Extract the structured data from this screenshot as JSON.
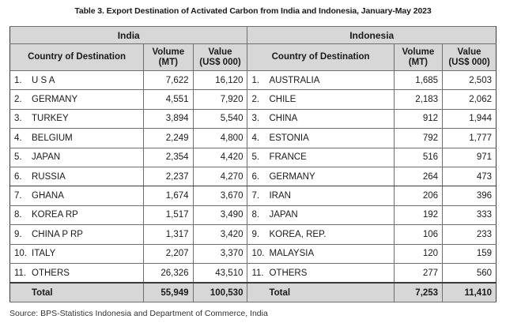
{
  "caption": "Table 3. Export Destination of Activated Carbon from India and Indonesia, January-May 2023",
  "india": {
    "title": "India",
    "headers": {
      "country": "Country of Destination",
      "volume_line1": "Volume",
      "volume_line2": "(MT)",
      "value_line1": "Value",
      "value_line2": "(US$ 000)"
    },
    "rows": [
      {
        "idx": "1.",
        "country": "U S A",
        "volume": "7,622",
        "value": "16,120"
      },
      {
        "idx": "2.",
        "country": "GERMANY",
        "volume": "4,551",
        "value": "7,920"
      },
      {
        "idx": "3.",
        "country": "TURKEY",
        "volume": "3,894",
        "value": "5,540"
      },
      {
        "idx": "4.",
        "country": "BELGIUM",
        "volume": "2,249",
        "value": "4,800"
      },
      {
        "idx": "5.",
        "country": "JAPAN",
        "volume": "2,354",
        "value": "4,420"
      },
      {
        "idx": "6.",
        "country": "RUSSIA",
        "volume": "2,237",
        "value": "4,270"
      },
      {
        "idx": "7.",
        "country": "GHANA",
        "volume": "1,674",
        "value": "3,670"
      },
      {
        "idx": "8.",
        "country": "KOREA RP",
        "volume": "1,517",
        "value": "3,490"
      },
      {
        "idx": "9.",
        "country": "CHINA P RP",
        "volume": "1,317",
        "value": "3,420"
      },
      {
        "idx": "10.",
        "country": "ITALY",
        "volume": "2,207",
        "value": "3,370"
      },
      {
        "idx": "11.",
        "country": "OTHERS",
        "volume": "26,326",
        "value": "43,510"
      }
    ],
    "total": {
      "label": "Total",
      "volume": "55,949",
      "value": "100,530"
    }
  },
  "indonesia": {
    "title": "Indonesia",
    "headers": {
      "country": "Country of Destination",
      "volume_line1": "Volume",
      "volume_line2": "(MT)",
      "value_line1": "Value",
      "value_line2": "(US$ 000)"
    },
    "rows": [
      {
        "idx": "1.",
        "country": "AUSTRALIA",
        "volume": "1,685",
        "value": "2,503"
      },
      {
        "idx": "2.",
        "country": "CHILE",
        "volume": "2,183",
        "value": "2,062"
      },
      {
        "idx": "3.",
        "country": "CHINA",
        "volume": "912",
        "value": "1,944"
      },
      {
        "idx": "4.",
        "country": "ESTONIA",
        "volume": "792",
        "value": "1,777"
      },
      {
        "idx": "5.",
        "country": "FRANCE",
        "volume": "516",
        "value": "971"
      },
      {
        "idx": "6.",
        "country": "GERMANY",
        "volume": "264",
        "value": "473"
      },
      {
        "idx": "7.",
        "country": "IRAN",
        "volume": "206",
        "value": "396"
      },
      {
        "idx": "8.",
        "country": "JAPAN",
        "volume": "192",
        "value": "333"
      },
      {
        "idx": "9.",
        "country": "KOREA, REP.",
        "volume": "106",
        "value": "233"
      },
      {
        "idx": "10.",
        "country": "MALAYSIA",
        "volume": "120",
        "value": "159"
      },
      {
        "idx": "11.",
        "country": "OTHERS",
        "volume": "277",
        "value": "560"
      }
    ],
    "total": {
      "label": "Total",
      "volume": "7,253",
      "value": "11,410"
    }
  },
  "source": "Source: BPS-Statistics Indonesia and Department of Commerce, India"
}
